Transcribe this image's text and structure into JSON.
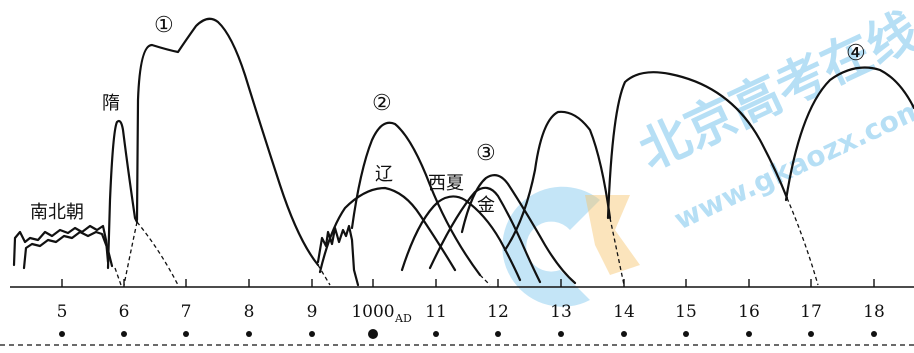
{
  "labels": {
    "nanbeichao": "南北朝",
    "sui": "隋",
    "liao": "辽",
    "xixia": "西夏",
    "jin": "金",
    "c1": "①",
    "c2": "②",
    "c3": "③",
    "c4": "④"
  },
  "axis": {
    "ticks": [
      "5",
      "6",
      "7",
      "8",
      "9",
      "1000",
      "11",
      "12",
      "13",
      "14",
      "15",
      "16",
      "17",
      "18"
    ],
    "ad_suffix": "AD"
  },
  "watermark": {
    "line1": "北京高考在线",
    "line2": "www.gkaozx.com",
    "color": "#7cc6ee"
  }
}
